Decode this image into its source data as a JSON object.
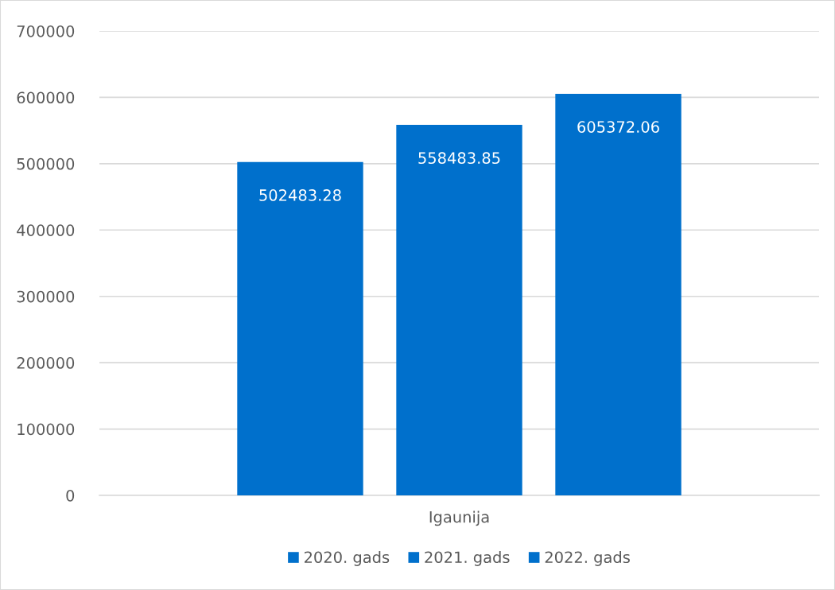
{
  "chart_data": {
    "type": "bar",
    "categories": [
      "Igaunija"
    ],
    "series": [
      {
        "name": "2020. gads",
        "color": "#0070cc",
        "values": [
          502483.28
        ]
      },
      {
        "name": "2021. gads",
        "color": "#0070cc",
        "values": [
          558483.85
        ]
      },
      {
        "name": "2022. gads",
        "color": "#0070cc",
        "values": [
          605372.06
        ]
      }
    ],
    "ylim": [
      0,
      700000
    ],
    "yticks": [
      0,
      100000,
      200000,
      300000,
      400000,
      500000,
      600000,
      700000
    ],
    "grid": "y",
    "legend": "bottom",
    "data_labels": true
  }
}
